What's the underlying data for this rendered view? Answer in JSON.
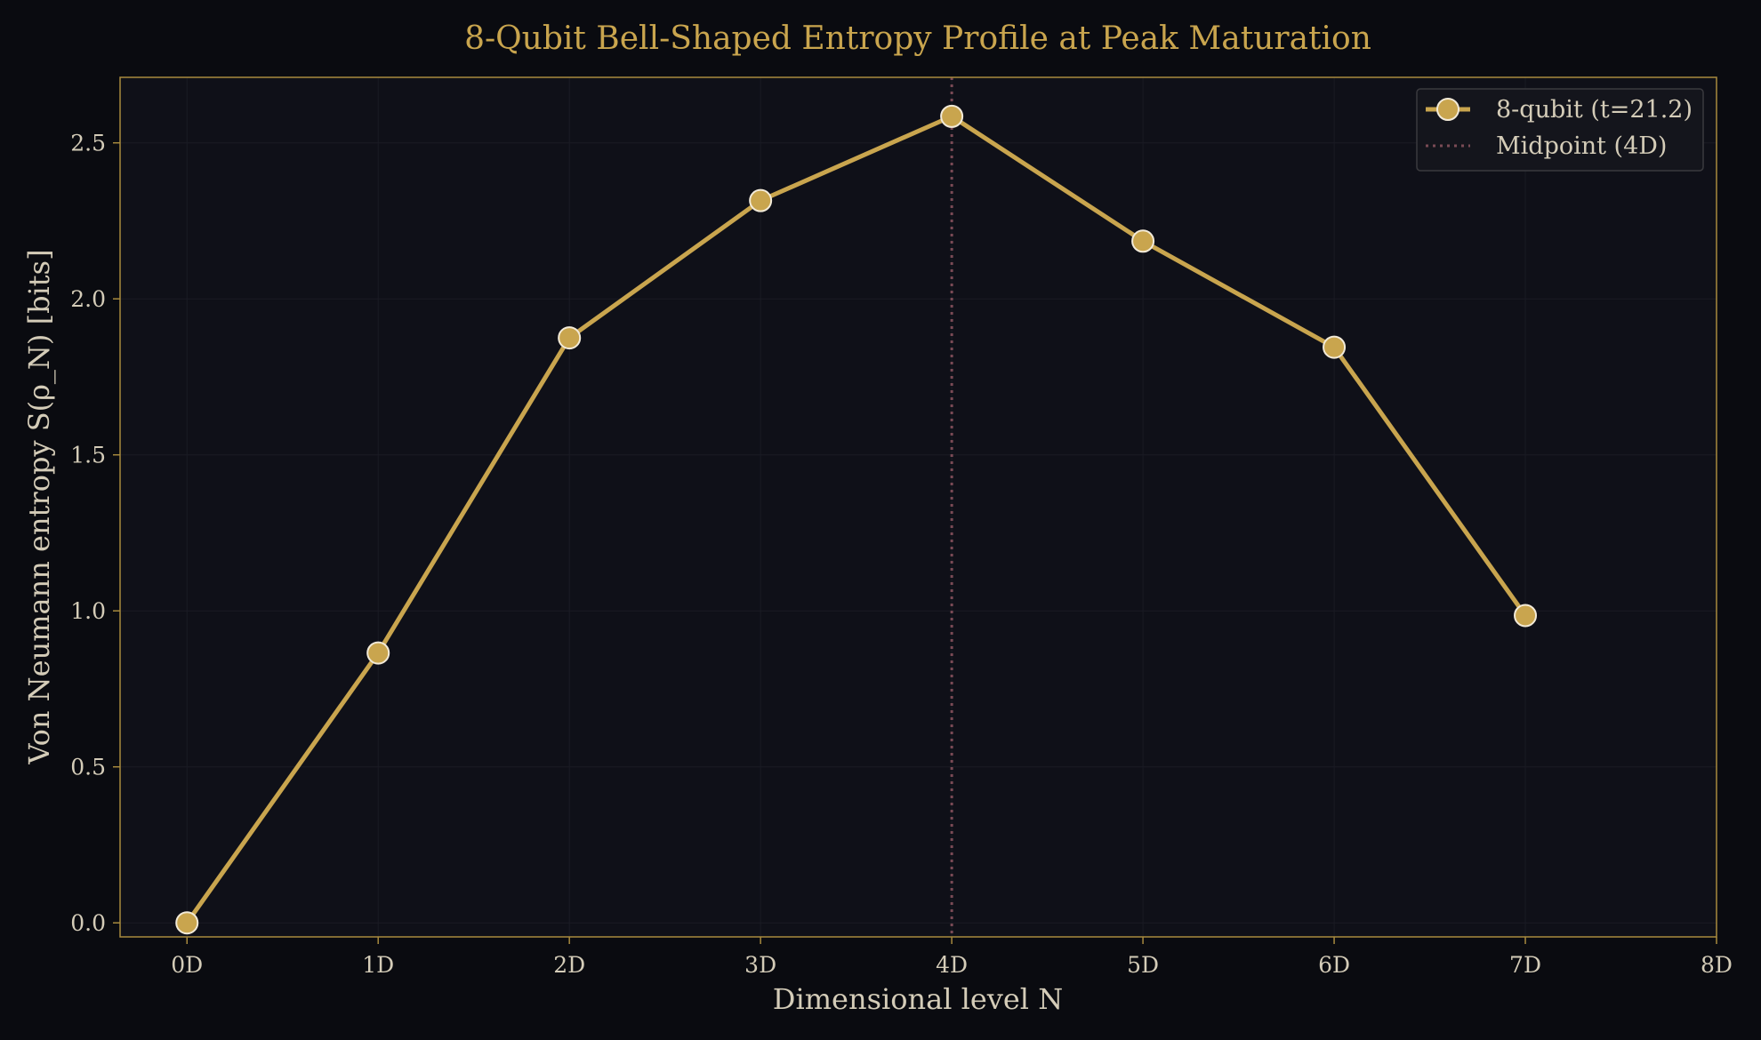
{
  "colors": {
    "background": "#0a0b10",
    "plot_area": "#0f1018",
    "frame": "#a88a3e",
    "series": "#c9a54e",
    "marker_edge": "#f2ead8",
    "midpoint_line": "#7a4a55",
    "text": "#d4ccb8",
    "title": "#c9a54e"
  },
  "chart_data": {
    "type": "line",
    "title": "8-Qubit Bell-Shaped Entropy Profile at Peak Maturation",
    "xlabel": "Dimensional level  N",
    "ylabel": "Von Neumann entropy  S(ρ_N)  [bits]",
    "x_ticks": [
      {
        "value": 0,
        "label": "0D"
      },
      {
        "value": 1,
        "label": "1D"
      },
      {
        "value": 2,
        "label": "2D"
      },
      {
        "value": 3,
        "label": "3D"
      },
      {
        "value": 4,
        "label": "4D"
      },
      {
        "value": 5,
        "label": "5D"
      },
      {
        "value": 6,
        "label": "6D"
      },
      {
        "value": 7,
        "label": "7D"
      },
      {
        "value": 8,
        "label": "8D"
      }
    ],
    "y_ticks": [
      {
        "value": 0.0,
        "label": "0.0"
      },
      {
        "value": 0.5,
        "label": "0.5"
      },
      {
        "value": 1.0,
        "label": "1.0"
      },
      {
        "value": 1.5,
        "label": "1.5"
      },
      {
        "value": 2.0,
        "label": "2.0"
      },
      {
        "value": 2.5,
        "label": "2.5"
      }
    ],
    "xlim": [
      -0.35,
      8
    ],
    "ylim": [
      -0.045,
      2.71
    ],
    "grid": true,
    "legend_position": "top-right",
    "series": [
      {
        "name": "8-qubit (t=21.2)",
        "x": [
          0,
          1,
          2,
          3,
          4,
          5,
          6,
          7
        ],
        "y": [
          0.0,
          0.865,
          1.875,
          2.315,
          2.585,
          2.185,
          1.845,
          0.985
        ]
      }
    ],
    "reference_lines": [
      {
        "name": "Midpoint (4D)",
        "x": 4,
        "style": "dotted"
      }
    ]
  }
}
